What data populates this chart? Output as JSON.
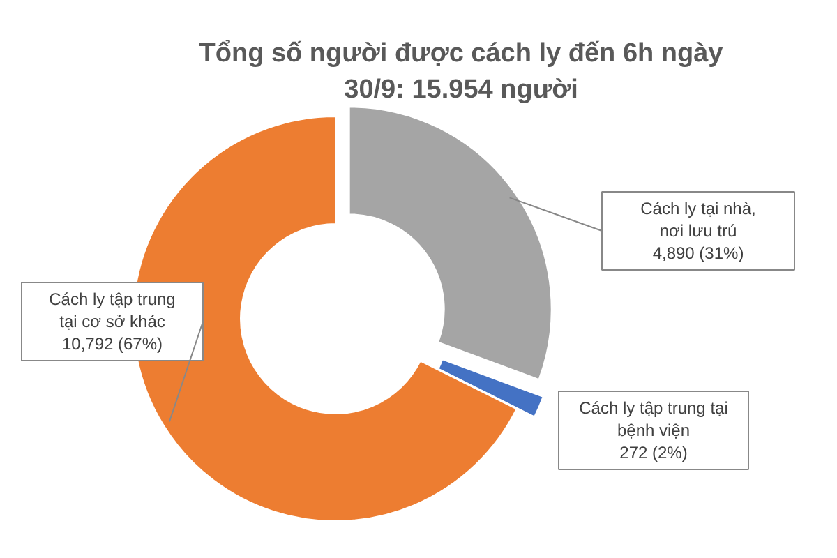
{
  "chart_data": {
    "type": "donut",
    "title": "Tổng số người được cách ly đến 6h ngày 30/9: 15.954 người",
    "categories": [
      "Cách ly tại nhà, nơi lưu trú",
      "Cách ly tập trung tại bệnh viện",
      "Cách ly tập trung tại cơ sở khác"
    ],
    "values": [
      4890,
      272,
      10792
    ],
    "colors": [
      "#a5a5a5",
      "#4472c4",
      "#ed7d31"
    ],
    "value_labels": [
      "4,890 (31%)",
      "272 (2%)",
      "10,792 (67%)"
    ]
  }
}
